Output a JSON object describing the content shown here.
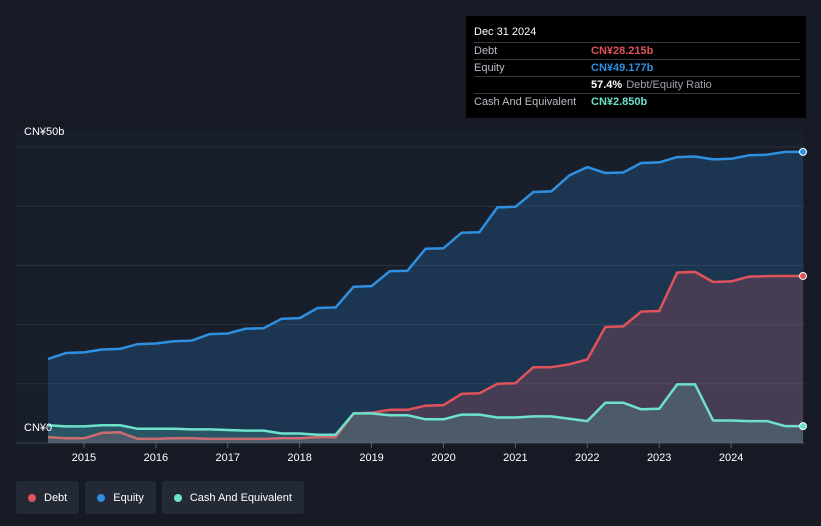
{
  "tooltip": {
    "date": "Dec 31 2024",
    "debt_label": "Debt",
    "debt_value": "CN¥28.215b",
    "equity_label": "Equity",
    "equity_value": "CN¥49.177b",
    "ratio_pct": "57.4%",
    "ratio_label": "Debt/Equity Ratio",
    "cash_label": "Cash And Equivalent",
    "cash_value": "CN¥2.850b"
  },
  "legend": [
    {
      "label": "Debt",
      "color": "#e0535b"
    },
    {
      "label": "Equity",
      "color": "#2f8fe0"
    },
    {
      "label": "Cash And Equivalent",
      "color": "#6ee1cc"
    }
  ],
  "chart_data": {
    "type": "area",
    "x_range": [
      2014.5,
      2025.0
    ],
    "ylim": [
      0,
      50
    ],
    "y_tick_labels": [
      "CN¥50b",
      "CN¥0"
    ],
    "y_ticks": [
      50,
      0
    ],
    "x_tick_labels": [
      "2015",
      "2016",
      "2017",
      "2018",
      "2019",
      "2020",
      "2021",
      "2022",
      "2023",
      "2024"
    ],
    "x_ticks": [
      2015,
      2016,
      2017,
      2018,
      2019,
      2020,
      2021,
      2022,
      2023,
      2024
    ],
    "grid": true,
    "colors": {
      "Debt": "#e0535b",
      "Equity": "#2f8fe0",
      "Cash And Equivalent": "#6ee1cc"
    },
    "series": [
      {
        "name": "Equity",
        "x": [
          2014.5,
          2014.75,
          2015.0,
          2015.25,
          2015.5,
          2015.75,
          2016.0,
          2016.25,
          2016.5,
          2016.75,
          2017.0,
          2017.25,
          2017.5,
          2017.75,
          2018.0,
          2018.25,
          2018.5,
          2018.75,
          2019.0,
          2019.25,
          2019.5,
          2019.75,
          2020.0,
          2020.25,
          2020.5,
          2020.75,
          2021.0,
          2021.25,
          2021.5,
          2021.75,
          2022.0,
          2022.25,
          2022.5,
          2022.75,
          2023.0,
          2023.25,
          2023.5,
          2023.75,
          2024.0,
          2024.25,
          2024.5,
          2024.75,
          2025.0
        ],
        "values": [
          14.2,
          15.2,
          15.3,
          15.8,
          15.9,
          16.7,
          16.8,
          17.2,
          17.3,
          18.4,
          18.5,
          19.3,
          19.4,
          21.0,
          21.1,
          22.8,
          22.9,
          26.4,
          26.5,
          29.0,
          29.1,
          32.8,
          32.9,
          35.5,
          35.6,
          39.8,
          39.9,
          42.4,
          42.5,
          45.2,
          46.6,
          45.6,
          45.7,
          47.3,
          47.4,
          48.3,
          48.4,
          47.9,
          48.0,
          48.6,
          48.7,
          49.177,
          49.177
        ]
      },
      {
        "name": "Debt",
        "x": [
          2014.5,
          2014.75,
          2015.0,
          2015.25,
          2015.5,
          2015.75,
          2016.0,
          2016.25,
          2016.5,
          2016.75,
          2017.0,
          2017.25,
          2017.5,
          2017.75,
          2018.0,
          2018.25,
          2018.5,
          2018.75,
          2019.0,
          2019.25,
          2019.5,
          2019.75,
          2020.0,
          2020.25,
          2020.5,
          2020.75,
          2021.0,
          2021.25,
          2021.5,
          2021.75,
          2022.0,
          2022.25,
          2022.5,
          2022.75,
          2023.0,
          2023.25,
          2023.5,
          2023.75,
          2024.0,
          2024.25,
          2024.5,
          2024.75,
          2025.0
        ],
        "values": [
          1.0,
          0.8,
          0.8,
          1.7,
          1.8,
          0.7,
          0.7,
          0.8,
          0.8,
          0.7,
          0.7,
          0.7,
          0.7,
          0.8,
          0.8,
          1.0,
          1.0,
          5.0,
          5.1,
          5.6,
          5.6,
          6.3,
          6.4,
          8.3,
          8.4,
          10.0,
          10.1,
          12.8,
          12.8,
          13.3,
          14.1,
          19.6,
          19.7,
          22.2,
          22.3,
          28.8,
          28.9,
          27.2,
          27.3,
          28.1,
          28.2,
          28.215,
          28.215
        ]
      },
      {
        "name": "Cash And Equivalent",
        "x": [
          2014.5,
          2014.75,
          2015.0,
          2015.25,
          2015.5,
          2015.75,
          2016.0,
          2016.25,
          2016.5,
          2016.75,
          2017.0,
          2017.25,
          2017.5,
          2017.75,
          2018.0,
          2018.25,
          2018.5,
          2018.75,
          2019.0,
          2019.25,
          2019.5,
          2019.75,
          2020.0,
          2020.25,
          2020.5,
          2020.75,
          2021.0,
          2021.25,
          2021.5,
          2021.75,
          2022.0,
          2022.25,
          2022.5,
          2022.75,
          2023.0,
          2023.25,
          2023.5,
          2023.75,
          2024.0,
          2024.25,
          2024.5,
          2024.75,
          2025.0
        ],
        "values": [
          3.0,
          2.8,
          2.8,
          3.0,
          3.0,
          2.4,
          2.4,
          2.4,
          2.3,
          2.3,
          2.2,
          2.1,
          2.1,
          1.6,
          1.6,
          1.4,
          1.4,
          5.0,
          5.0,
          4.7,
          4.7,
          4.0,
          4.0,
          4.8,
          4.8,
          4.3,
          4.3,
          4.5,
          4.5,
          4.1,
          3.7,
          6.8,
          6.8,
          5.7,
          5.8,
          9.9,
          9.9,
          3.8,
          3.8,
          3.7,
          3.7,
          2.85,
          2.85
        ]
      }
    ]
  }
}
